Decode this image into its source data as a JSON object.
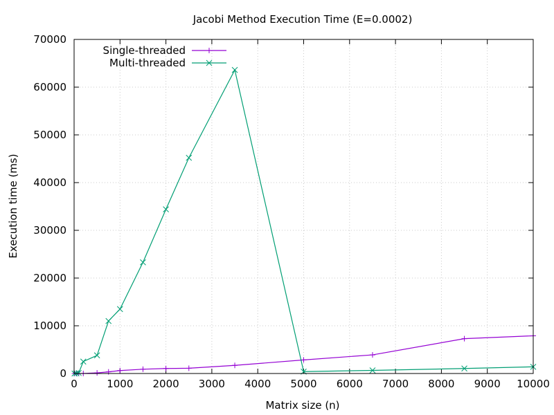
{
  "chart_data": {
    "type": "line",
    "title": "Jacobi Method Execution Time (E=0.0002)",
    "xlabel": "Matrix size (n)",
    "ylabel": "Execution time (ms)",
    "xlim": [
      0,
      10000
    ],
    "ylim": [
      0,
      70000
    ],
    "x_ticks": [
      0,
      1000,
      2000,
      3000,
      4000,
      5000,
      6000,
      7000,
      8000,
      9000,
      10000
    ],
    "y_ticks": [
      0,
      10000,
      20000,
      30000,
      40000,
      50000,
      60000,
      70000
    ],
    "grid": true,
    "legend_position": "top-left",
    "series": [
      {
        "name": "Single-threaded",
        "color": "#9400d3",
        "marker": "plus",
        "x": [
          10,
          50,
          100,
          200,
          500,
          750,
          1000,
          1500,
          2000,
          2500,
          3500,
          5000,
          6500,
          8500,
          10000
        ],
        "y": [
          0,
          0,
          2,
          10,
          130,
          340,
          620,
          900,
          1050,
          1100,
          1700,
          2850,
          3900,
          7300,
          7900
        ]
      },
      {
        "name": "Multi-threaded",
        "color": "#009e73",
        "marker": "cross",
        "x": [
          10,
          50,
          100,
          200,
          500,
          750,
          1000,
          1500,
          2000,
          2500,
          3500,
          5000,
          6500,
          8500,
          10000
        ],
        "y": [
          0,
          50,
          100,
          2500,
          3800,
          11000,
          13500,
          23300,
          34400,
          45200,
          63600,
          400,
          650,
          1050,
          1400
        ]
      }
    ]
  }
}
